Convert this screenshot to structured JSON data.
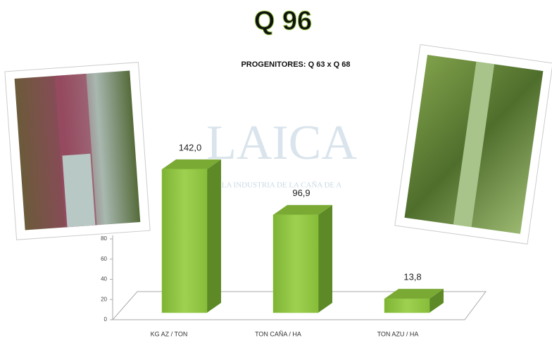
{
  "chart_data": {
    "type": "bar3d",
    "title": "Q 96",
    "subtitle": "PROGENITORES: Q 63 x Q 68",
    "watermark": "LAICA",
    "watermark_caption": "LA INDUSTRIA DE LA CAÑA DE A",
    "categories": [
      "KG AZ / TON",
      "TON CAÑA / HA",
      "TON AZU / HA"
    ],
    "values": [
      142.0,
      96.9,
      13.8
    ],
    "value_labels": [
      "142,0",
      "96,9",
      "13,8"
    ],
    "color": "#8cc63e",
    "ylim": [
      0,
      80
    ],
    "yticks": [
      0,
      20,
      40,
      60,
      80
    ]
  }
}
